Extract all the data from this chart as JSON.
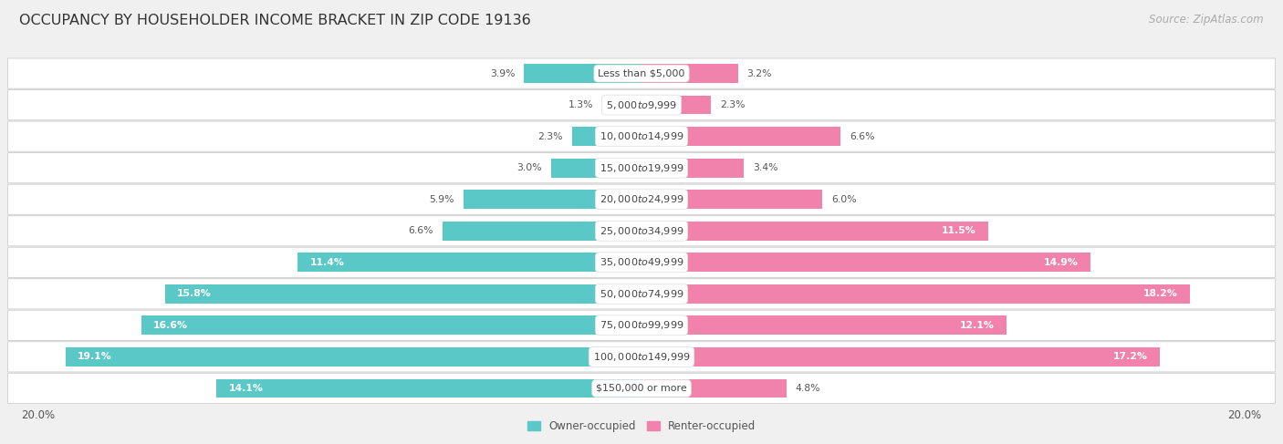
{
  "title": "OCCUPANCY BY HOUSEHOLDER INCOME BRACKET IN ZIP CODE 19136",
  "source": "Source: ZipAtlas.com",
  "categories": [
    "Less than $5,000",
    "$5,000 to $9,999",
    "$10,000 to $14,999",
    "$15,000 to $19,999",
    "$20,000 to $24,999",
    "$25,000 to $34,999",
    "$35,000 to $49,999",
    "$50,000 to $74,999",
    "$75,000 to $99,999",
    "$100,000 to $149,999",
    "$150,000 or more"
  ],
  "owner_values": [
    3.9,
    1.3,
    2.3,
    3.0,
    5.9,
    6.6,
    11.4,
    15.8,
    16.6,
    19.1,
    14.1
  ],
  "renter_values": [
    3.2,
    2.3,
    6.6,
    3.4,
    6.0,
    11.5,
    14.9,
    18.2,
    12.1,
    17.2,
    4.8
  ],
  "owner_color": "#5BC8C8",
  "renter_color": "#F082AC",
  "background_color": "#f0f0f0",
  "bar_background": "#ffffff",
  "row_sep_color": "#d8d8d8",
  "axis_max": 20.0,
  "legend_owner": "Owner-occupied",
  "legend_renter": "Renter-occupied",
  "title_fontsize": 11.5,
  "source_fontsize": 8.5,
  "label_fontsize": 8.5,
  "category_fontsize": 8.0,
  "value_fontsize": 7.8
}
